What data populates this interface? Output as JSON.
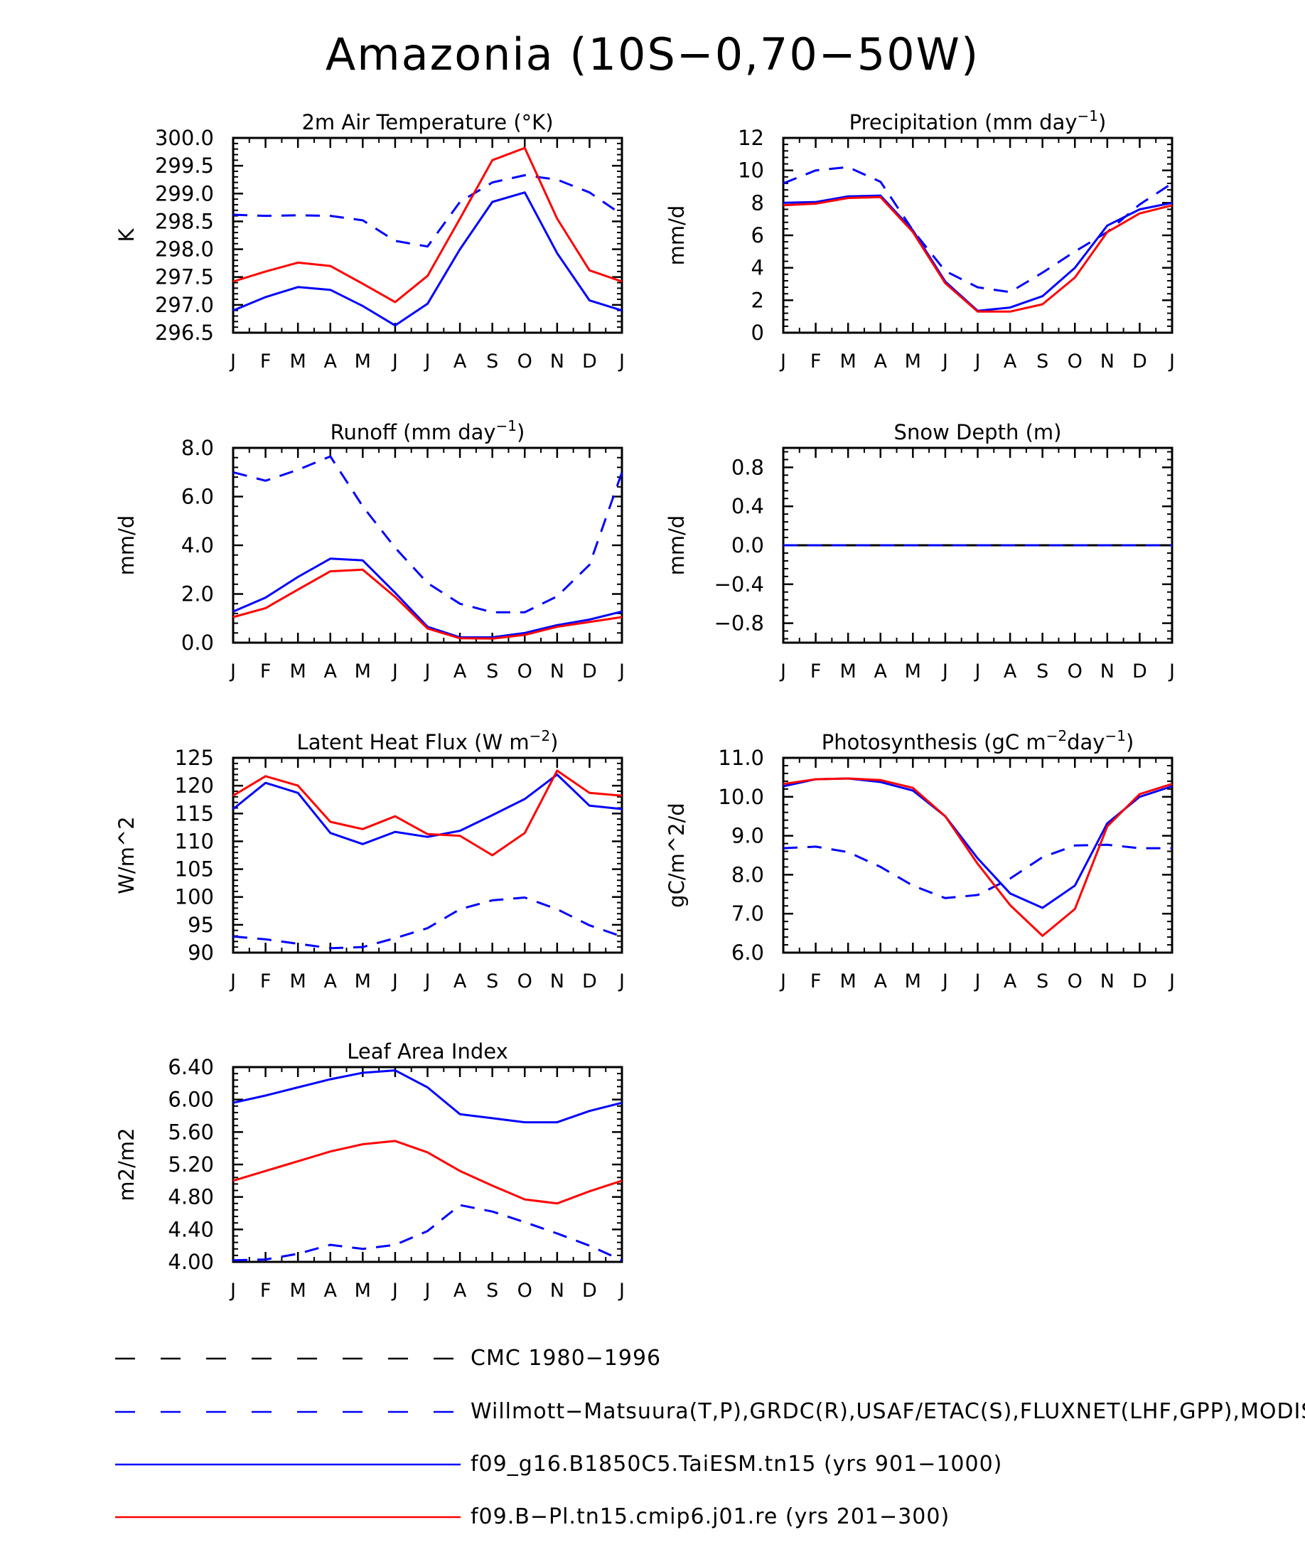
{
  "title": "Amazonia (10S−0,70−50W)",
  "colors": {
    "obs_cmc": "#000000",
    "obs_willmott": "#0000ff",
    "taiesm": "#0000ff",
    "cmip6": "#ff0000"
  },
  "legend": [
    {
      "label": "CMC 1980−1996",
      "color": "#000000",
      "dash": true
    },
    {
      "label": "Willmott−Matsuura(T,P),GRDC(R),USAF/ETAC(S),FLUXNET(LHF,GPP),MODIS(L",
      "color": "#0000ff",
      "dash": true
    },
    {
      "label": "f09_g16.B1850C5.TaiESM.tn15 (yrs 901−1000)",
      "color": "#0000ff",
      "dash": false
    },
    {
      "label": "f09.B−Pl.tn15.cmip6.j01.re (yrs 201−300)",
      "color": "#ff0000",
      "dash": false
    }
  ],
  "chart_data": [
    {
      "type": "line",
      "title": "2m Air Temperature (°K)",
      "ylabel": "K",
      "x": [
        "J",
        "F",
        "M",
        "A",
        "M",
        "J",
        "J",
        "A",
        "S",
        "O",
        "N",
        "D",
        "J"
      ],
      "ylim": [
        296.5,
        300.0
      ],
      "yticks": [
        "296.5",
        "297.0",
        "297.5",
        "298.0",
        "298.5",
        "299.0",
        "299.5",
        "300.0"
      ],
      "series": [
        {
          "style": "dashed",
          "color": "#0000ff",
          "values": [
            298.62,
            298.6,
            298.61,
            298.6,
            298.52,
            298.15,
            298.05,
            298.85,
            299.2,
            299.33,
            299.25,
            299.02,
            298.62
          ]
        },
        {
          "style": "solid",
          "color": "#0000ff",
          "values": [
            296.9,
            297.14,
            297.32,
            297.27,
            296.98,
            296.63,
            297.02,
            298.0,
            298.85,
            299.02,
            297.93,
            297.08,
            296.9
          ]
        },
        {
          "style": "solid",
          "color": "#ff0000",
          "values": [
            297.42,
            297.6,
            297.76,
            297.7,
            297.38,
            297.05,
            297.52,
            298.55,
            299.6,
            299.82,
            298.55,
            297.62,
            297.42
          ]
        }
      ]
    },
    {
      "type": "line",
      "title": "Precipitation (mm day",
      "title_sup": "−1",
      "title_after": ")",
      "ylabel": "mm/d",
      "x": [
        "J",
        "F",
        "M",
        "A",
        "M",
        "J",
        "J",
        "A",
        "S",
        "O",
        "N",
        "D",
        "J"
      ],
      "ylim": [
        0,
        12
      ],
      "yticks": [
        "0",
        "2",
        "4",
        "6",
        "8",
        "10",
        "12"
      ],
      "series": [
        {
          "style": "dashed",
          "color": "#0000ff",
          "values": [
            9.2,
            10.0,
            10.2,
            9.3,
            6.3,
            3.8,
            2.8,
            2.5,
            3.7,
            5.0,
            6.2,
            7.9,
            9.2
          ]
        },
        {
          "style": "solid",
          "color": "#0000ff",
          "values": [
            8.0,
            8.05,
            8.4,
            8.45,
            6.3,
            3.15,
            1.35,
            1.55,
            2.25,
            4.0,
            6.6,
            7.6,
            8.0
          ]
        },
        {
          "style": "solid",
          "color": "#ff0000",
          "values": [
            7.85,
            7.95,
            8.3,
            8.35,
            6.2,
            3.05,
            1.3,
            1.3,
            1.75,
            3.4,
            6.2,
            7.35,
            7.85
          ]
        }
      ]
    },
    {
      "type": "line",
      "title": "Runoff (mm day",
      "title_sup": "−1",
      "title_after": ")",
      "ylabel": "mm/d",
      "x": [
        "J",
        "F",
        "M",
        "A",
        "M",
        "J",
        "J",
        "A",
        "S",
        "O",
        "N",
        "D",
        "J"
      ],
      "ylim": [
        0,
        8
      ],
      "yticks": [
        "0.0",
        "2.0",
        "4.0",
        "6.0",
        "8.0"
      ],
      "series": [
        {
          "style": "dashed",
          "color": "#0000ff",
          "values": [
            7.0,
            6.65,
            7.1,
            7.65,
            5.6,
            3.9,
            2.45,
            1.6,
            1.25,
            1.25,
            1.9,
            3.2,
            7.0
          ]
        },
        {
          "style": "solid",
          "color": "#0000ff",
          "values": [
            1.28,
            1.85,
            2.7,
            3.45,
            3.38,
            2.05,
            0.65,
            0.22,
            0.22,
            0.4,
            0.72,
            0.95,
            1.28
          ]
        },
        {
          "style": "solid",
          "color": "#ff0000",
          "values": [
            1.05,
            1.42,
            2.18,
            2.93,
            3.0,
            1.88,
            0.58,
            0.18,
            0.17,
            0.32,
            0.65,
            0.85,
            1.05
          ]
        }
      ]
    },
    {
      "type": "line",
      "title": "Snow Depth (m)",
      "ylabel": "mm/d",
      "x": [
        "J",
        "F",
        "M",
        "A",
        "M",
        "J",
        "J",
        "A",
        "S",
        "O",
        "N",
        "D",
        "J"
      ],
      "ylim": [
        -1.0,
        1.0
      ],
      "yticks": [
        "−0.8",
        "−0.4",
        "0.0",
        "0.4",
        "0.8"
      ],
      "ytick_values": [
        -0.8,
        -0.4,
        0.0,
        0.4,
        0.8
      ],
      "series": [
        {
          "style": "solid",
          "color": "#000000",
          "values": [
            0,
            0,
            0,
            0,
            0,
            0,
            0,
            0,
            0,
            0,
            0,
            0,
            0
          ]
        },
        {
          "style": "dashed",
          "color": "#0000ff",
          "values": [
            0,
            0,
            0,
            0,
            0,
            0,
            0,
            0,
            0,
            0,
            0,
            0,
            0
          ]
        }
      ]
    },
    {
      "type": "line",
      "title": "Latent Heat Flux (W m",
      "title_sup": "−2",
      "title_after": ")",
      "ylabel": "W/m^2",
      "x": [
        "J",
        "F",
        "M",
        "A",
        "M",
        "J",
        "J",
        "A",
        "S",
        "O",
        "N",
        "D",
        "J"
      ],
      "ylim": [
        90,
        125
      ],
      "yticks": [
        "90",
        "95",
        "100",
        "105",
        "110",
        "115",
        "120",
        "125"
      ],
      "series": [
        {
          "style": "dashed",
          "color": "#0000ff",
          "values": [
            92.9,
            92.4,
            91.6,
            90.8,
            91.0,
            92.6,
            94.4,
            97.8,
            99.4,
            99.9,
            97.8,
            94.9,
            92.9
          ]
        },
        {
          "style": "solid",
          "color": "#0000ff",
          "values": [
            115.8,
            120.5,
            118.7,
            111.5,
            109.5,
            111.7,
            110.8,
            111.9,
            114.7,
            117.6,
            122.0,
            116.4,
            115.8
          ]
        },
        {
          "style": "solid",
          "color": "#ff0000",
          "values": [
            118.2,
            121.7,
            120.0,
            113.5,
            112.2,
            114.5,
            111.3,
            111.0,
            107.5,
            111.5,
            122.7,
            118.7,
            118.2
          ]
        }
      ]
    },
    {
      "type": "line",
      "title": "Photosynthesis (gC m",
      "title_sup": "−2",
      "title_mid": "day",
      "title_sup2": "−1",
      "title_after": ")",
      "ylabel": "gC/m^2/d",
      "x": [
        "J",
        "F",
        "M",
        "A",
        "M",
        "J",
        "J",
        "A",
        "S",
        "O",
        "N",
        "D",
        "J"
      ],
      "ylim": [
        6.0,
        11.0
      ],
      "yticks": [
        "6.0",
        "7.0",
        "8.0",
        "9.0",
        "10.0",
        "11.0"
      ],
      "series": [
        {
          "style": "dashed",
          "color": "#0000ff",
          "values": [
            8.68,
            8.72,
            8.58,
            8.2,
            7.72,
            7.4,
            7.48,
            7.9,
            8.45,
            8.75,
            8.77,
            8.68,
            8.68
          ]
        },
        {
          "style": "solid",
          "color": "#0000ff",
          "values": [
            10.27,
            10.45,
            10.47,
            10.38,
            10.16,
            9.5,
            8.42,
            7.52,
            7.15,
            7.72,
            9.32,
            10.0,
            10.27
          ]
        },
        {
          "style": "solid",
          "color": "#ff0000",
          "values": [
            10.33,
            10.45,
            10.47,
            10.43,
            10.23,
            9.5,
            8.28,
            7.22,
            6.43,
            7.12,
            9.24,
            10.07,
            10.33
          ]
        }
      ]
    },
    {
      "type": "line",
      "title": "Leaf Area Index",
      "ylabel": "m2/m2",
      "x": [
        "J",
        "F",
        "M",
        "A",
        "M",
        "J",
        "J",
        "A",
        "S",
        "O",
        "N",
        "D",
        "J"
      ],
      "ylim": [
        4.0,
        6.4
      ],
      "yticks": [
        "4.00",
        "4.40",
        "4.80",
        "5.20",
        "5.60",
        "6.00",
        "6.40"
      ],
      "series": [
        {
          "style": "dashed",
          "color": "#0000ff",
          "values": [
            4.02,
            4.03,
            4.1,
            4.21,
            4.16,
            4.21,
            4.38,
            4.7,
            4.62,
            4.49,
            4.35,
            4.2,
            4.02
          ]
        },
        {
          "style": "solid",
          "color": "#0000ff",
          "values": [
            5.96,
            6.05,
            6.15,
            6.25,
            6.33,
            6.36,
            6.15,
            5.82,
            5.77,
            5.72,
            5.72,
            5.86,
            5.96
          ]
        },
        {
          "style": "solid",
          "color": "#ff0000",
          "values": [
            5.0,
            5.12,
            5.24,
            5.36,
            5.45,
            5.49,
            5.35,
            5.12,
            4.94,
            4.77,
            4.72,
            4.87,
            5.0
          ]
        }
      ]
    }
  ]
}
